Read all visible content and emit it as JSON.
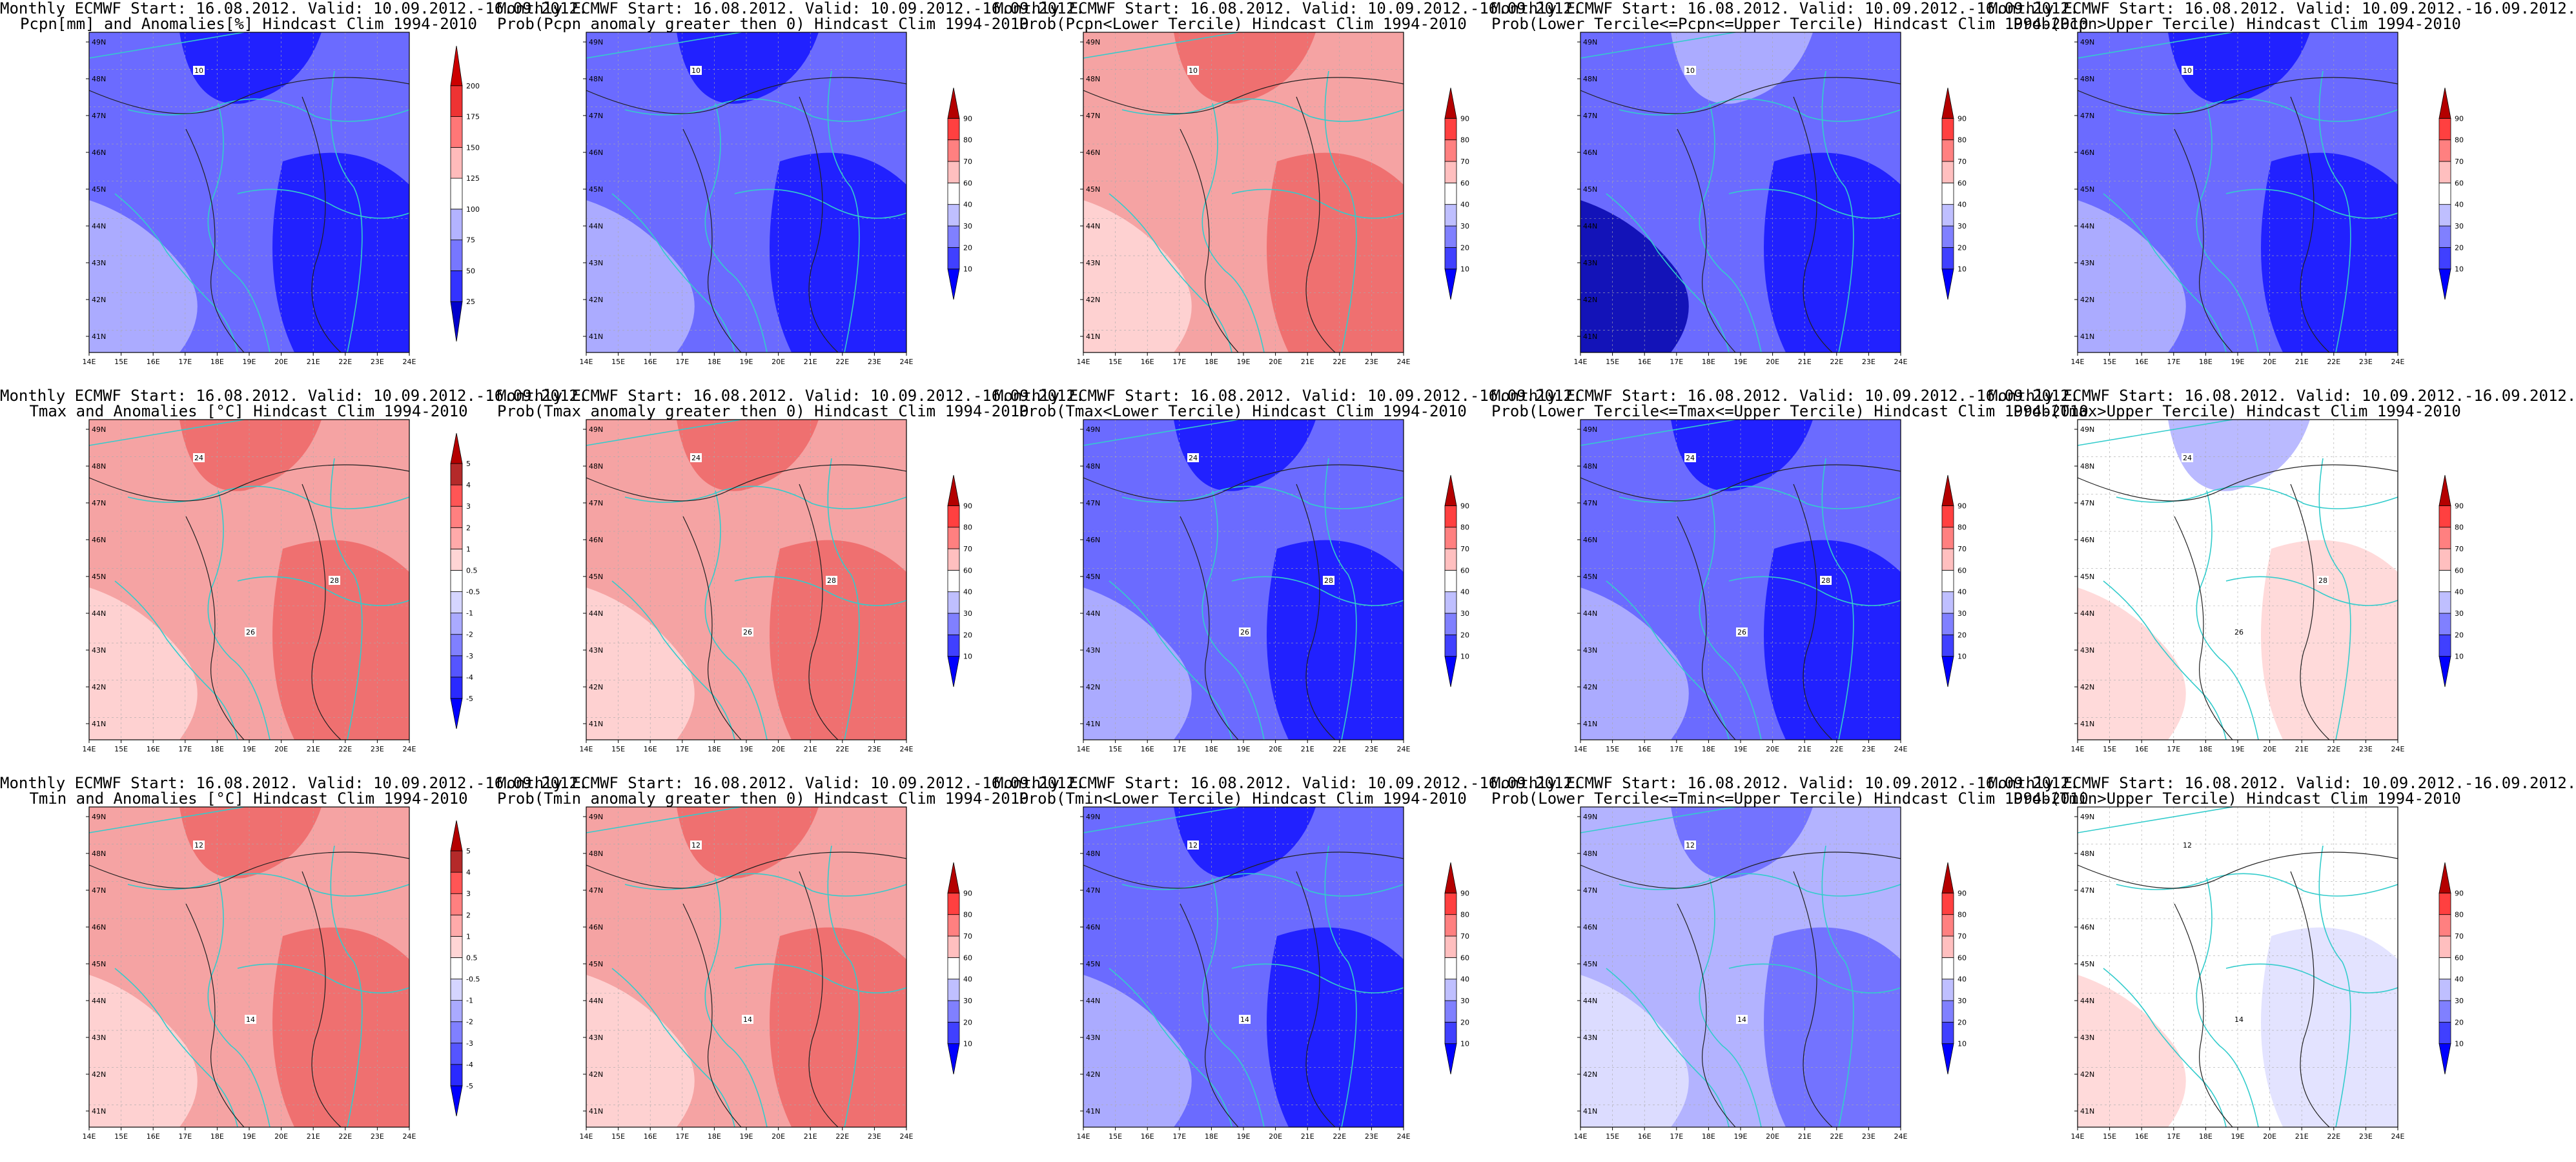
{
  "lon_ticks": [
    "14E",
    "15E",
    "16E",
    "17E",
    "18E",
    "19E",
    "20E",
    "21E",
    "22E",
    "23E",
    "24E"
  ],
  "lat_ticks": [
    "41N",
    "42N",
    "43N",
    "44N",
    "45N",
    "46N",
    "47N",
    "48N",
    "49N"
  ],
  "palette": {
    "deep_blue": "#1a1aff",
    "mid_blue": "#6b6bff",
    "light_blue": "#b3b3ff",
    "pale_blue": "#e0e0ff",
    "white": "#ffffff",
    "pale_red": "#ffd6d6",
    "light_red": "#f5a3a3",
    "mid_red": "#ee6a6a",
    "border": "#33cccc",
    "contour": "#202020"
  },
  "colorbars": {
    "anom_pcpn": [
      "25",
      "50",
      "75",
      "100",
      "125",
      "150",
      "175",
      "200"
    ],
    "anom_temp": [
      "-5",
      "-4",
      "-3",
      "-2",
      "-1",
      "-0.5",
      "0.5",
      "1",
      "2",
      "3",
      "4",
      "5"
    ],
    "prob": [
      "10",
      "20",
      "30",
      "40",
      "60",
      "70",
      "80",
      "90"
    ]
  },
  "panels": [
    {
      "title1": "Monthly ECMWF Start: 16.08.2012. Valid: 10.09.2012.-16.09.2012.",
      "title2": "Pcpn[mm] and Anomalies[%] Hindcast Clim 1994-2010",
      "colorbar": "anom_pcpn",
      "scheme": "blue",
      "contour_labels": [
        "10"
      ]
    },
    {
      "title1": "Monthly ECMWF Start: 16.08.2012. Valid: 10.09.2012.-16.09.2012.",
      "title2": "Prob(Pcpn anomaly greater then 0) Hindcast Clim 1994-2010",
      "colorbar": "prob",
      "scheme": "blue",
      "contour_labels": [
        "10"
      ]
    },
    {
      "title1": "Monthly ECMWF Start: 16.08.2012. Valid: 10.09.2012.-16.09.2012.",
      "title2": "Prob(Pcpn<Lower Tercile) Hindcast Clim 1994-2010",
      "colorbar": "prob",
      "scheme": "red",
      "contour_labels": [
        "10"
      ]
    },
    {
      "title1": "Monthly ECMWF Start: 16.08.2012. Valid: 10.09.2012.-16.09.2012.",
      "title2": "Prob(Lower Tercile<=Pcpn<=Upper Tercile) Hindcast Clim 1994-2010",
      "colorbar": "prob",
      "scheme": "deepblue",
      "contour_labels": [
        "10"
      ]
    },
    {
      "title1": "Monthly ECMWF Start: 16.08.2012. Valid: 10.09.2012.-16.09.2012.",
      "title2": "Prob(Pcpn>Upper Tercile) Hindcast Clim 1994-2010",
      "colorbar": "prob",
      "scheme": "blue",
      "contour_labels": [
        "10"
      ]
    },
    {
      "title1": "Monthly ECMWF Start: 16.08.2012. Valid: 10.09.2012.-16.09.2012.",
      "title2": "Tmax and Anomalies [°C] Hindcast Clim 1994-2010",
      "colorbar": "anom_temp",
      "scheme": "red",
      "contour_labels": [
        "24",
        "26",
        "28"
      ]
    },
    {
      "title1": "Monthly ECMWF Start: 16.08.2012. Valid: 10.09.2012.-16.09.2012.",
      "title2": "Prob(Tmax anomaly greater then 0) Hindcast Clim 1994-2010",
      "colorbar": "prob",
      "scheme": "red",
      "contour_labels": [
        "24",
        "26",
        "28"
      ]
    },
    {
      "title1": "Monthly ECMWF Start: 16.08.2012. Valid: 10.09.2012.-16.09.2012.",
      "title2": "Prob(Tmax<Lower Tercile) Hindcast Clim 1994-2010",
      "colorbar": "prob",
      "scheme": "blue",
      "contour_labels": [
        "24",
        "26",
        "28"
      ]
    },
    {
      "title1": "Monthly ECMWF Start: 16.08.2012. Valid: 10.09.2012.-16.09.2012.",
      "title2": "Prob(Lower Tercile<=Tmax<=Upper Tercile) Hindcast Clim 1994-2010",
      "colorbar": "prob",
      "scheme": "blue",
      "contour_labels": [
        "24",
        "26",
        "28"
      ]
    },
    {
      "title1": "Monthly ECMWF Start: 16.08.2012. Valid: 10.09.2012.-16.09.2012.",
      "title2": "Prob(Tmax>Upper Tercile) Hindcast Clim 1994-2010",
      "colorbar": "prob",
      "scheme": "palered",
      "contour_labels": [
        "24",
        "26",
        "28"
      ]
    },
    {
      "title1": "Monthly ECMWF Start: 16.08.2012. Valid: 10.09.2012.-16.09.2012.",
      "title2": "Tmin and Anomalies [°C] Hindcast Clim 1994-2010",
      "colorbar": "anom_temp",
      "scheme": "red",
      "contour_labels": [
        "12",
        "14"
      ]
    },
    {
      "title1": "Monthly ECMWF Start: 16.08.2012. Valid: 10.09.2012.-16.09.2012.",
      "title2": "Prob(Tmin anomaly greater then 0) Hindcast Clim 1994-2010",
      "colorbar": "prob",
      "scheme": "red",
      "contour_labels": [
        "12",
        "14"
      ]
    },
    {
      "title1": "Monthly ECMWF Start: 16.08.2012. Valid: 10.09.2012.-16.09.2012.",
      "title2": "Prob(Tmin<Lower Tercile) Hindcast Clim 1994-2010",
      "colorbar": "prob",
      "scheme": "blue",
      "contour_labels": [
        "12",
        "14"
      ]
    },
    {
      "title1": "Monthly ECMWF Start: 16.08.2012. Valid: 10.09.2012.-16.09.2012.",
      "title2": "Prob(Lower Tercile<=Tmin<=Upper Tercile) Hindcast Clim 1994-2010",
      "colorbar": "prob",
      "scheme": "lightblue",
      "contour_labels": [
        "12",
        "14"
      ]
    },
    {
      "title1": "Monthly ECMWF Start: 16.08.2012. Valid: 10.09.2012.-16.09.2012.",
      "title2": "Prob(Tmin>Upper Tercile) Hindcast Clim 1994-2010",
      "colorbar": "prob",
      "scheme": "white",
      "contour_labels": [
        "12",
        "14"
      ]
    }
  ]
}
